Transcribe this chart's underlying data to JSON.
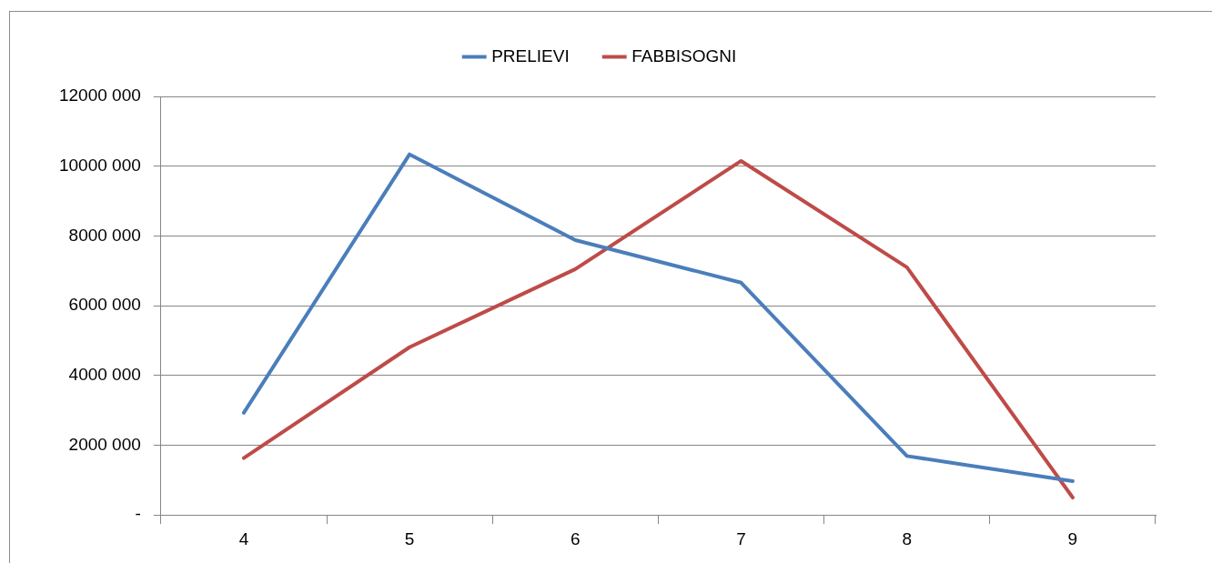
{
  "chart_data": {
    "type": "line",
    "categories": [
      "4",
      "5",
      "6",
      "7",
      "8",
      "9"
    ],
    "series": [
      {
        "name": "PRELIEVI",
        "color": "#4a7ebb",
        "values": [
          2930000,
          10340000,
          7880000,
          6660000,
          1690000,
          970000
        ]
      },
      {
        "name": "FABBISOGNI",
        "color": "#be4b48",
        "values": [
          1630000,
          4810000,
          7050000,
          10150000,
          7100000,
          500000
        ]
      }
    ],
    "ylim": [
      0,
      12000000
    ],
    "yticks": [
      {
        "value": 0,
        "label": "-"
      },
      {
        "value": 2000000,
        "label": "2000 000"
      },
      {
        "value": 4000000,
        "label": "4000 000"
      },
      {
        "value": 6000000,
        "label": "6000 000"
      },
      {
        "value": 8000000,
        "label": "8000 000"
      },
      {
        "value": 10000000,
        "label": "10000 000"
      },
      {
        "value": 12000000,
        "label": "12000 000"
      }
    ],
    "grid": "y",
    "legend": "top",
    "marker": "none",
    "line_style": "solid"
  }
}
